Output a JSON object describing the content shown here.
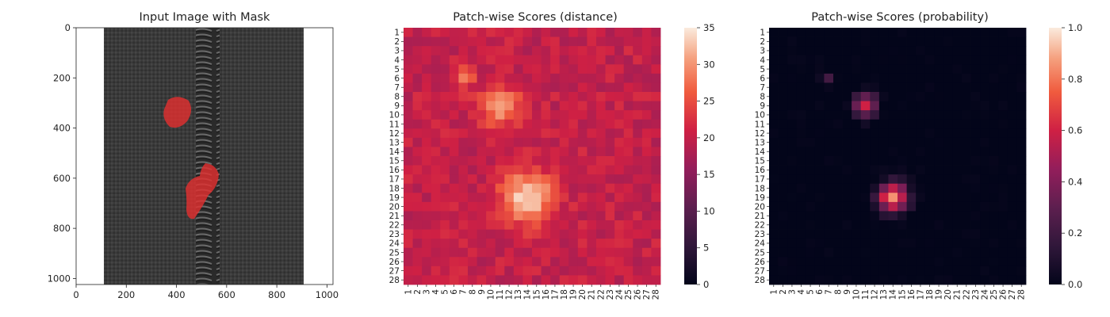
{
  "chart_data": [
    {
      "type": "image",
      "title": "Input Image with Mask",
      "xlim": [
        0,
        1024
      ],
      "ylim": [
        1024,
        0
      ],
      "x_ticks": [
        0,
        200,
        400,
        600,
        800,
        1000
      ],
      "y_ticks": [
        0,
        200,
        400,
        600,
        800,
        1000
      ],
      "mask_color": "#e03030",
      "fabric_color": "#3a3a3a"
    },
    {
      "type": "heatmap",
      "title": "Patch-wise Scores (distance)",
      "rows": 28,
      "cols": 28,
      "colorbar_range": [
        0,
        35
      ],
      "colorbar_ticks": [
        0,
        5,
        10,
        15,
        20,
        25,
        30,
        35
      ],
      "baseline": 19,
      "hotspots": [
        {
          "row": 19,
          "col": 14,
          "peak": 34,
          "spread": 1.9
        },
        {
          "row": 9,
          "col": 11,
          "peak": 29,
          "spread": 1.5
        },
        {
          "row": 6,
          "col": 7,
          "peak": 26,
          "spread": 0.9
        }
      ]
    },
    {
      "type": "heatmap",
      "title": "Patch-wise Scores (probability)",
      "rows": 28,
      "cols": 28,
      "colorbar_range": [
        0,
        1
      ],
      "colorbar_ticks": [
        0.0,
        0.2,
        0.4,
        0.6,
        0.8,
        1.0
      ],
      "baseline": 0.0,
      "hotspots": [
        {
          "row": 19,
          "col": 14,
          "peak": 0.85,
          "spread": 1.1
        },
        {
          "row": 9,
          "col": 11,
          "peak": 0.6,
          "spread": 0.9
        },
        {
          "row": 6,
          "col": 7,
          "peak": 0.2,
          "spread": 0.5
        }
      ]
    }
  ]
}
